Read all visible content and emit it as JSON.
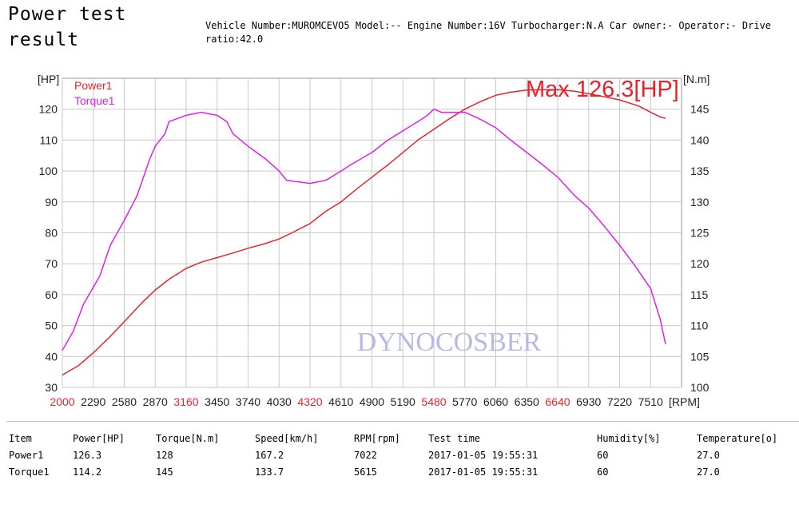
{
  "page": {
    "title": "Power test result",
    "info_text": "Vehicle Number:MUROMCEVO5 Model:-- Engine Number:16V Turbocharger:N.A Car owner:- Operator:- Drive ratio:42.0"
  },
  "colors": {
    "power": "#e8242b",
    "torque": "#e020e8",
    "grid": "#c8c8c8",
    "watermark": "#b7b9e6",
    "highlight_tick": "#e8242b"
  },
  "chart_data": {
    "type": "line",
    "left_axis_label": "[HP]",
    "right_axis_label": "[N.m]",
    "x_axis_label": "[RPM]",
    "xlim": [
      2000,
      7800
    ],
    "x_ticks": [
      2000,
      2290,
      2580,
      2870,
      3160,
      3450,
      3740,
      4030,
      4320,
      4610,
      4900,
      5190,
      5480,
      5770,
      6060,
      6350,
      6640,
      6930,
      7220,
      7510
    ],
    "x_ticks_highlighted": [
      2000,
      3160,
      4320,
      5480,
      6640
    ],
    "ylim_left": [
      30,
      130
    ],
    "y_ticks_left": [
      30,
      40,
      50,
      60,
      70,
      80,
      90,
      100,
      110,
      120
    ],
    "ylim_right": [
      100,
      150
    ],
    "y_ticks_right": [
      100,
      105,
      110,
      115,
      120,
      125,
      130,
      135,
      140,
      145
    ],
    "grid": true,
    "legend_position": "top-left",
    "annotation": "Max 126.3[HP]",
    "watermark": "DYNOCOSBER",
    "series": [
      {
        "name": "Power1",
        "axis": "left",
        "points": [
          [
            2000,
            34
          ],
          [
            2150,
            37
          ],
          [
            2300,
            41.5
          ],
          [
            2450,
            46.5
          ],
          [
            2600,
            52
          ],
          [
            2750,
            57.5
          ],
          [
            2870,
            61.5
          ],
          [
            3000,
            65
          ],
          [
            3160,
            68.5
          ],
          [
            3300,
            70.5
          ],
          [
            3450,
            72
          ],
          [
            3600,
            73.5
          ],
          [
            3740,
            75
          ],
          [
            3900,
            76.5
          ],
          [
            4030,
            78
          ],
          [
            4150,
            80
          ],
          [
            4320,
            83
          ],
          [
            4470,
            87
          ],
          [
            4610,
            90
          ],
          [
            4750,
            94
          ],
          [
            4900,
            98
          ],
          [
            5050,
            102
          ],
          [
            5190,
            106
          ],
          [
            5330,
            110
          ],
          [
            5480,
            113.5
          ],
          [
            5630,
            117
          ],
          [
            5770,
            120
          ],
          [
            5920,
            122.5
          ],
          [
            6060,
            124.5
          ],
          [
            6200,
            125.5
          ],
          [
            6350,
            126.2
          ],
          [
            6500,
            126.3
          ],
          [
            6640,
            126.3
          ],
          [
            6800,
            125.8
          ],
          [
            6930,
            125
          ],
          [
            7080,
            124
          ],
          [
            7220,
            123
          ],
          [
            7400,
            121
          ],
          [
            7510,
            119
          ],
          [
            7600,
            117.5
          ],
          [
            7650,
            117
          ]
        ]
      },
      {
        "name": "Torque1",
        "axis": "right",
        "points": [
          [
            2000,
            106
          ],
          [
            2100,
            109
          ],
          [
            2200,
            113.5
          ],
          [
            2350,
            118
          ],
          [
            2450,
            123
          ],
          [
            2580,
            127
          ],
          [
            2700,
            131
          ],
          [
            2820,
            137
          ],
          [
            2870,
            139
          ],
          [
            2960,
            141
          ],
          [
            3000,
            143
          ],
          [
            3160,
            144
          ],
          [
            3300,
            144.5
          ],
          [
            3450,
            144
          ],
          [
            3540,
            143
          ],
          [
            3600,
            141
          ],
          [
            3740,
            139
          ],
          [
            3900,
            137
          ],
          [
            4030,
            135
          ],
          [
            4100,
            133.5
          ],
          [
            4320,
            133
          ],
          [
            4470,
            133.5
          ],
          [
            4610,
            135
          ],
          [
            4700,
            136
          ],
          [
            4900,
            138
          ],
          [
            5050,
            140
          ],
          [
            5190,
            141.5
          ],
          [
            5330,
            143
          ],
          [
            5420,
            144
          ],
          [
            5480,
            145
          ],
          [
            5550,
            144.5
          ],
          [
            5770,
            144.5
          ],
          [
            5900,
            143.5
          ],
          [
            6060,
            142
          ],
          [
            6200,
            140
          ],
          [
            6350,
            138
          ],
          [
            6500,
            136
          ],
          [
            6640,
            134
          ],
          [
            6800,
            131
          ],
          [
            6930,
            129
          ],
          [
            7080,
            126
          ],
          [
            7220,
            123
          ],
          [
            7350,
            120
          ],
          [
            7510,
            116
          ],
          [
            7600,
            111
          ],
          [
            7650,
            107
          ]
        ]
      }
    ]
  },
  "table": {
    "headers": [
      "Item",
      "Power[HP]",
      "Torque[N.m]",
      "Speed[km/h]",
      "RPM[rpm]",
      "Test time",
      "Humidity[%]",
      "Temperature[o]"
    ],
    "rows": [
      [
        "Power1",
        "126.3",
        "128",
        "167.2",
        "7022",
        "2017-01-05 19:55:31",
        "60",
        "27.0"
      ],
      [
        "Torque1",
        "114.2",
        "145",
        "133.7",
        "5615",
        "2017-01-05 19:55:31",
        "60",
        "27.0"
      ]
    ]
  }
}
